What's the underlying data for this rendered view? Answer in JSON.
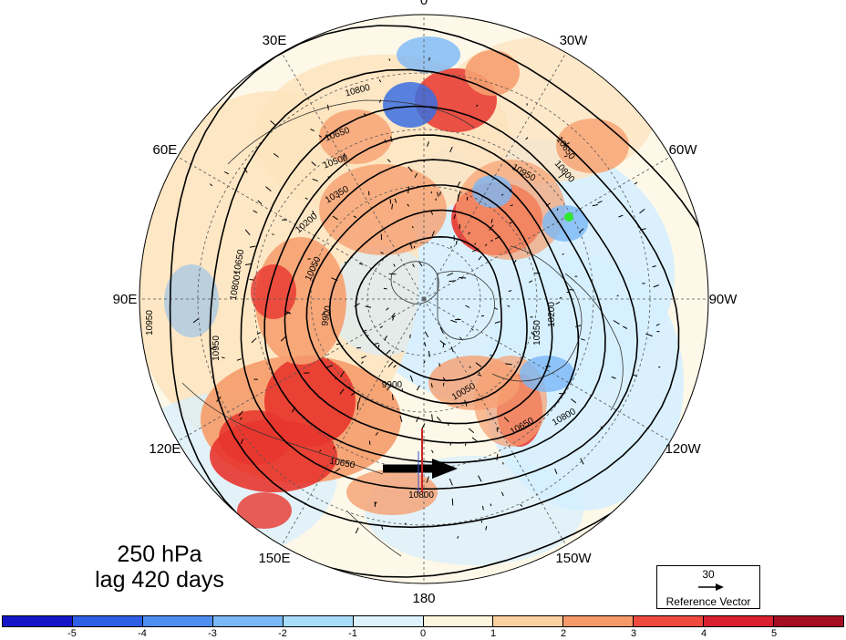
{
  "title": {
    "level": "250 hPa",
    "lag": "lag 420 days"
  },
  "longitude_labels": [
    {
      "text": "0",
      "angle": 0
    },
    {
      "text": "30W",
      "angle": 30
    },
    {
      "text": "60W",
      "angle": 60
    },
    {
      "text": "90W",
      "angle": 90
    },
    {
      "text": "120W",
      "angle": 120
    },
    {
      "text": "150W",
      "angle": 150
    },
    {
      "text": "180",
      "angle": 180
    },
    {
      "text": "150E",
      "angle": 210
    },
    {
      "text": "120E",
      "angle": 240
    },
    {
      "text": "90E",
      "angle": 270
    },
    {
      "text": "60E",
      "angle": 300
    },
    {
      "text": "30E",
      "angle": 330
    }
  ],
  "contour_levels": [
    9900,
    10050,
    10200,
    10350,
    10500,
    10650,
    10800,
    10950
  ],
  "contour_labels": [
    "10800",
    "10650",
    "10500",
    "10350",
    "10200",
    "10050",
    "9900",
    "10650",
    "10800",
    "10950",
    "10650",
    "10800",
    "10800",
    "10650",
    "10950",
    "10950",
    "9900",
    "10050",
    "10200",
    "10350",
    "10650",
    "10800"
  ],
  "reference_vector": {
    "magnitude": "30",
    "label": "Reference Vector"
  },
  "colorbar": {
    "ticks": [
      "-5",
      "-4",
      "-3",
      "-2",
      "-1",
      "0",
      "1",
      "2",
      "3",
      "4",
      "5"
    ],
    "colors": [
      "#1515c8",
      "#2d5fe6",
      "#4e8ef2",
      "#7ab8f6",
      "#a8dcfb",
      "#dcf3fd",
      "#fdf6dc",
      "#fbd0a0",
      "#f69a6a",
      "#ee4a3e",
      "#d92030",
      "#a40e22"
    ]
  },
  "anomaly_colors": {
    "strong_pos": "#e8362e",
    "pos": "#f6a070",
    "weak_pos": "#fde4c0",
    "neutral": "#fdf8e8",
    "weak_neg": "#d6efff",
    "neg": "#7ab8f6",
    "strong_neg": "#3a6fe0"
  },
  "marker_color": "#2ee82e"
}
